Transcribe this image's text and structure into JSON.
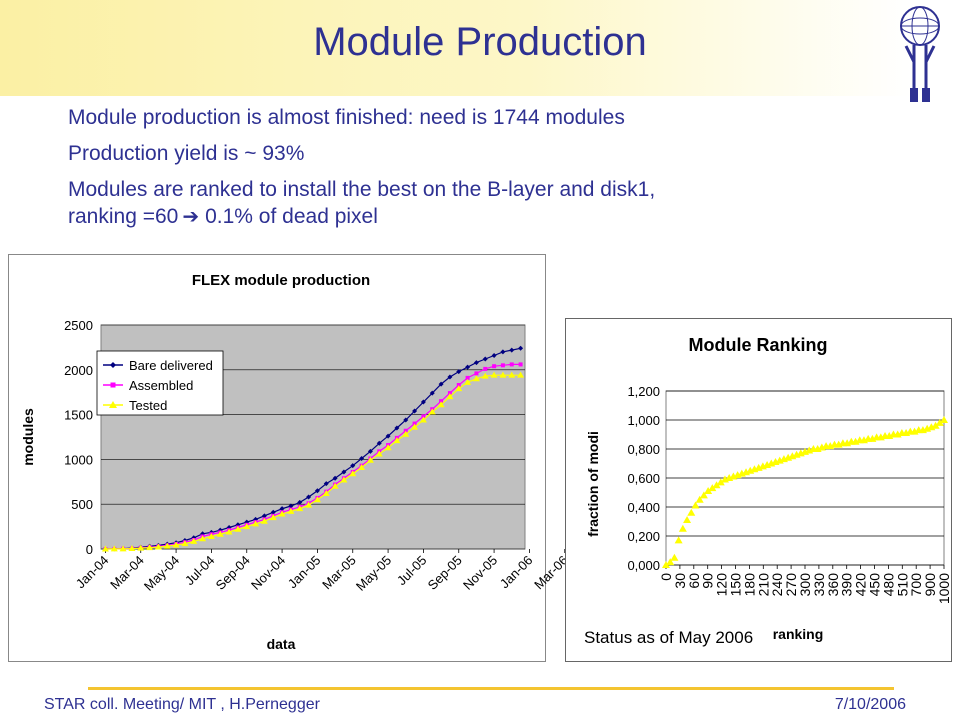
{
  "slide": {
    "title": "Module Production",
    "bullets": [
      {
        "lines": [
          "Module production is almost finished: need is 1744 modules"
        ]
      },
      {
        "lines": [
          "Production yield is ~ 93%"
        ]
      },
      {
        "lines": [
          "Modules are ranked to install the best on the B-layer and disk1,"
        ],
        "line2_before": "ranking =60",
        "line2_after": "0.1% of dead pixel"
      }
    ],
    "footer_left": "STAR coll. Meeting/ MIT , H.Pernegger",
    "footer_right": "7/10/2006",
    "status_note": "Status as of May 2006",
    "accent_color": "#2e3192",
    "footer_rule_color": "#f4c430"
  },
  "chart_data": [
    {
      "type": "line",
      "title": "FLEX module production",
      "xlabel": "data",
      "ylabel": "modules",
      "ylim": [
        0,
        2500
      ],
      "yticks": [
        0,
        500,
        1000,
        1500,
        2000,
        2500
      ],
      "grid": true,
      "legend_position": "top-left",
      "x_tick_labels": [
        "Jan-04",
        "Mar-04",
        "May-04",
        "Jul-04",
        "Sep-04",
        "Nov-04",
        "Jan-05",
        "Mar-05",
        "May-05",
        "Jul-05",
        "Sep-05",
        "Nov-05",
        "Jan-06",
        "Mar-06"
      ],
      "x_tick_indices": [
        0,
        4,
        8,
        12,
        16,
        20,
        24,
        28,
        32,
        36,
        40,
        44,
        48,
        52
      ],
      "series": [
        {
          "name": "Bare delivered",
          "color": "#000080",
          "marker": "diamond",
          "values": [
            0,
            2,
            5,
            10,
            20,
            30,
            40,
            55,
            70,
            95,
            125,
            170,
            185,
            210,
            240,
            270,
            300,
            330,
            370,
            410,
            450,
            480,
            520,
            580,
            650,
            730,
            790,
            860,
            930,
            1010,
            1090,
            1180,
            1260,
            1350,
            1440,
            1540,
            1640,
            1740,
            1840,
            1920,
            1980,
            2030,
            2080,
            2120,
            2160,
            2200,
            2220,
            2240
          ]
        },
        {
          "name": "Assembled",
          "color": "#ff00ff",
          "marker": "square",
          "values": [
            0,
            1,
            3,
            6,
            12,
            20,
            30,
            40,
            55,
            75,
            100,
            140,
            165,
            185,
            210,
            240,
            270,
            300,
            330,
            370,
            410,
            440,
            470,
            510,
            570,
            640,
            720,
            790,
            860,
            930,
            1010,
            1090,
            1160,
            1240,
            1320,
            1400,
            1480,
            1560,
            1650,
            1740,
            1830,
            1910,
            1960,
            2010,
            2040,
            2050,
            2060,
            2060
          ]
        },
        {
          "name": "Tested",
          "color": "#ffff00",
          "marker": "triangle",
          "values": [
            0,
            1,
            2,
            5,
            10,
            15,
            22,
            32,
            45,
            60,
            85,
            115,
            140,
            165,
            190,
            220,
            250,
            280,
            310,
            350,
            390,
            420,
            450,
            490,
            550,
            620,
            700,
            770,
            840,
            910,
            990,
            1060,
            1130,
            1210,
            1280,
            1360,
            1440,
            1530,
            1610,
            1700,
            1790,
            1860,
            1900,
            1930,
            1940,
            1940,
            1940,
            1940
          ]
        }
      ]
    },
    {
      "type": "scatter",
      "title": "Module Ranking",
      "xlabel": "ranking",
      "ylabel": "fraction of modi",
      "ylim": [
        0,
        1.2
      ],
      "yticks": [
        0,
        0.2,
        0.4,
        0.6,
        0.8,
        1.0,
        1.2
      ],
      "ytick_labels": [
        "0,000",
        "0,200",
        "0,400",
        "0,600",
        "0,800",
        "1,000",
        "1,200"
      ],
      "grid": true,
      "x_tick_labels": [
        "0",
        "30",
        "60",
        "90",
        "120",
        "150",
        "180",
        "210",
        "240",
        "270",
        "300",
        "330",
        "360",
        "390",
        "420",
        "450",
        "480",
        "510",
        "700",
        "900",
        "1000"
      ],
      "series": [
        {
          "name": "",
          "color": "#ffff00",
          "marker": "triangle",
          "x": [
            0,
            5,
            10,
            15,
            20,
            25,
            30,
            35,
            40,
            45,
            50,
            55,
            60,
            65,
            70,
            75,
            80,
            85,
            90,
            95,
            100,
            110,
            120,
            130,
            140,
            150,
            160,
            170,
            180,
            190,
            200,
            210,
            220,
            230,
            240,
            250,
            260,
            270,
            280,
            290,
            300,
            310,
            320,
            330,
            340,
            350,
            360,
            370,
            380,
            390,
            400,
            410,
            420,
            430,
            440,
            450,
            460,
            470,
            480,
            490,
            500,
            510,
            600,
            700,
            800,
            900,
            1000
          ],
          "y": [
            0,
            0.02,
            0.05,
            0.17,
            0.25,
            0.31,
            0.36,
            0.41,
            0.45,
            0.48,
            0.51,
            0.53,
            0.55,
            0.57,
            0.59,
            0.6,
            0.61,
            0.62,
            0.63,
            0.64,
            0.65,
            0.66,
            0.67,
            0.68,
            0.69,
            0.7,
            0.71,
            0.72,
            0.73,
            0.74,
            0.75,
            0.76,
            0.77,
            0.78,
            0.79,
            0.8,
            0.8,
            0.81,
            0.82,
            0.82,
            0.83,
            0.83,
            0.84,
            0.84,
            0.85,
            0.85,
            0.86,
            0.86,
            0.87,
            0.87,
            0.88,
            0.88,
            0.89,
            0.89,
            0.9,
            0.9,
            0.91,
            0.91,
            0.92,
            0.92,
            0.93,
            0.93,
            0.94,
            0.95,
            0.96,
            0.98,
            1.0
          ]
        }
      ]
    }
  ]
}
